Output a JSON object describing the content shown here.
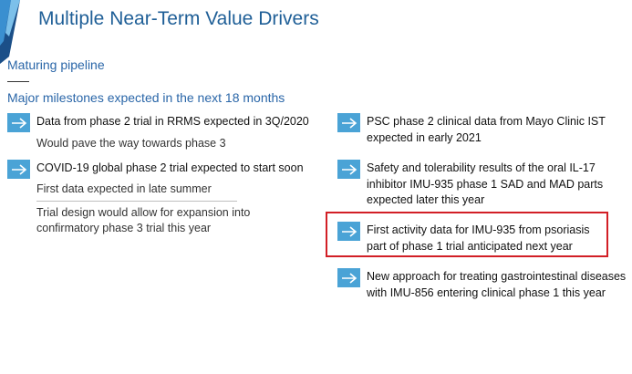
{
  "title": "Multiple Near-Term Value Drivers",
  "subtitle": "Maturing pipeline",
  "milestones_heading": "Major milestones expected in the next 18 months",
  "colors": {
    "accent": "#4aa3d6",
    "title": "#1f5f97",
    "highlight": "#d21f26"
  },
  "left": {
    "item1": {
      "main": "Data from phase 2 trial in RRMS expected in 3Q/2020",
      "sub": "Would pave the way towards phase 3"
    },
    "item2": {
      "main": "COVID-19 global phase 2 trial expected to start soon",
      "sub1": "First data expected in late summer",
      "sub2_line1": "Trial design would allow for expansion into",
      "sub2_line2": "confirmatory phase 3 trial this year"
    }
  },
  "right": {
    "item1": {
      "line1": "PSC phase 2 clinical data from Mayo Clinic IST",
      "line2": "expected in early 2021"
    },
    "item2": {
      "line1": "Safety and tolerability results of the oral IL-17",
      "line2": "inhibitor IMU-935 phase 1 SAD and MAD parts",
      "line3": "expected later this year"
    },
    "item3": {
      "line1": "First activity data for IMU-935 from psoriasis",
      "line2": "part of phase 1 trial anticipated next year"
    },
    "item4": {
      "line1": "New approach for treating gastrointestinal diseases",
      "line2": "with IMU-856 entering clinical phase 1 this year"
    }
  }
}
